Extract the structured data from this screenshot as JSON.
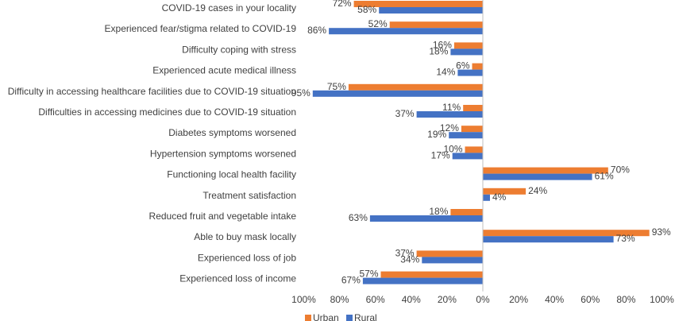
{
  "chart_data": {
    "type": "bar",
    "orientation": "horizontal-diverging",
    "categories": [
      "COVID-19 cases in your locality",
      "Experienced fear/stigma related to COVID-19",
      "Difficulty coping with stress",
      "Experienced acute medical illness",
      "Difficulty in accessing healthcare facilities due to COVID-19 situation",
      "Difficulties in accessing medicines due to COVID-19 situation",
      "Diabetes symptoms worsened",
      "Hypertension symptoms worsened",
      "Functioning local health facility",
      "Treatment satisfaction",
      "Reduced fruit and vegetable intake",
      "Able to buy mask locally",
      "Experienced loss of job",
      "Experienced loss of income"
    ],
    "direction": [
      -1,
      -1,
      -1,
      -1,
      -1,
      -1,
      -1,
      -1,
      1,
      1,
      -1,
      1,
      -1,
      -1
    ],
    "series": [
      {
        "name": "Urban",
        "color": "#ED7D31",
        "values": [
          72,
          52,
          16,
          6,
          75,
          11,
          12,
          10,
          70,
          24,
          18,
          93,
          37,
          57
        ]
      },
      {
        "name": "Rural",
        "color": "#4472C4",
        "values": [
          58,
          86,
          18,
          14,
          95,
          37,
          19,
          17,
          61,
          4,
          63,
          73,
          34,
          67
        ]
      }
    ],
    "data_labels": {
      "Urban": [
        "72%",
        "52%",
        "16%",
        "6%",
        "75%",
        "11%",
        "12%",
        "10%",
        "70%",
        "24%",
        "18%",
        "93%",
        "37%",
        "57%"
      ],
      "Rural": [
        "58%",
        "86%",
        "18%",
        "14%",
        "95%",
        "37%",
        "19%",
        "17%",
        "61%",
        "4%",
        "63%",
        "73%",
        "34%",
        "67%"
      ]
    },
    "xlim": [
      -100,
      100
    ],
    "x_ticks": [
      "100%",
      "80%",
      "60%",
      "40%",
      "20%",
      "0%",
      "20%",
      "40%",
      "60%",
      "80%",
      "100%"
    ],
    "legend": "bottom",
    "grid": false,
    "title": "",
    "xlabel": "",
    "ylabel": ""
  }
}
